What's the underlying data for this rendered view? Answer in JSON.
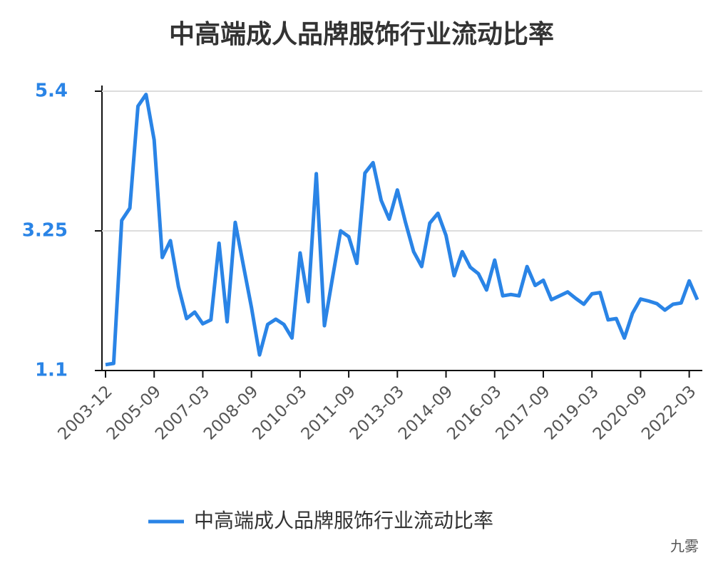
{
  "chart_data": {
    "type": "line",
    "title": "中高端成人品牌服饰行业流动比率",
    "categories": [
      "2003-12",
      null,
      null,
      null,
      null,
      null,
      "2005-09",
      null,
      null,
      null,
      null,
      null,
      "2007-03",
      null,
      null,
      null,
      null,
      null,
      "2008-09",
      null,
      null,
      null,
      null,
      null,
      "2010-03",
      null,
      null,
      null,
      null,
      null,
      "2011-09",
      null,
      null,
      null,
      null,
      null,
      "2013-03",
      null,
      null,
      null,
      null,
      null,
      "2014-09",
      null,
      null,
      null,
      null,
      null,
      "2016-03",
      null,
      null,
      null,
      null,
      null,
      "2017-09",
      null,
      null,
      null,
      null,
      null,
      "2019-03",
      null,
      null,
      null,
      null,
      null,
      "2020-09",
      null,
      null,
      null,
      null,
      null,
      "2022-03",
      null
    ],
    "series": [
      {
        "name": "中高端成人品牌服饰行业流动比率",
        "color": "#2a84e6",
        "values": [
          1.19,
          1.21,
          3.41,
          3.6,
          5.17,
          5.35,
          4.65,
          2.84,
          3.1,
          2.39,
          1.9,
          2.0,
          1.82,
          1.88,
          3.06,
          1.85,
          3.38,
          2.72,
          2.07,
          1.34,
          1.81,
          1.89,
          1.81,
          1.6,
          2.91,
          2.16,
          4.13,
          1.79,
          2.53,
          3.25,
          3.16,
          2.75,
          4.14,
          4.3,
          3.72,
          3.43,
          3.88,
          3.38,
          2.93,
          2.7,
          3.37,
          3.52,
          3.18,
          2.56,
          2.93,
          2.69,
          2.59,
          2.34,
          2.8,
          2.25,
          2.27,
          2.25,
          2.7,
          2.41,
          2.49,
          2.19,
          2.25,
          2.31,
          2.21,
          2.12,
          2.28,
          2.3,
          1.88,
          1.9,
          1.6,
          1.98,
          2.2,
          2.17,
          2.13,
          2.03,
          2.12,
          2.14,
          2.48,
          2.19
        ]
      }
    ],
    "ylim": [
      1.1,
      5.4
    ],
    "yticks": [
      1.1,
      3.25,
      5.4
    ],
    "grid": true,
    "legend": "bottom",
    "watermark": "九雾"
  }
}
